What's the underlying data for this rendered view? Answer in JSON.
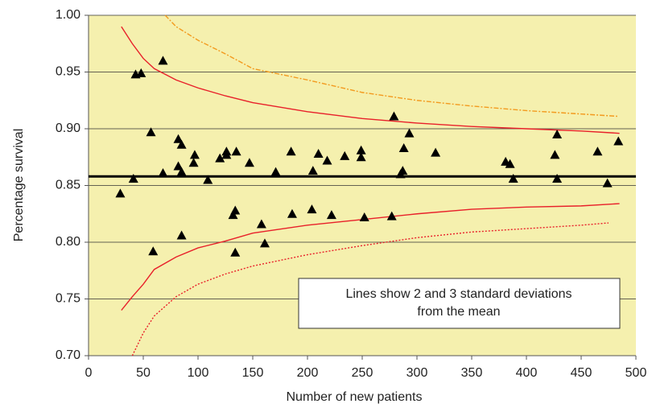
{
  "chart_data": {
    "type": "scatter",
    "xlabel": "Number of new patients",
    "ylabel": "Percentage survival",
    "xlim": [
      0,
      500
    ],
    "ylim": [
      0.7,
      1.0
    ],
    "xticks": [
      0,
      50,
      100,
      150,
      200,
      250,
      300,
      350,
      400,
      450,
      500
    ],
    "yticks": [
      {
        "value": 0.7,
        "label": "0.70"
      },
      {
        "value": 0.75,
        "label": "0.75"
      },
      {
        "value": 0.8,
        "label": "0.80"
      },
      {
        "value": 0.85,
        "label": "0.85"
      },
      {
        "value": 0.9,
        "label": "0.90"
      },
      {
        "value": 0.95,
        "label": "0.95"
      },
      {
        "value": 1.0,
        "label": "1.00"
      }
    ],
    "grid": true,
    "color": "#000000",
    "background": "#f5f0ae",
    "x": [
      29,
      41,
      43,
      48,
      57,
      59,
      68,
      68,
      82,
      82,
      85,
      85,
      85,
      96,
      97,
      109,
      120,
      126,
      126,
      135,
      132,
      134,
      134,
      147,
      158,
      161,
      171,
      185,
      186,
      204,
      205,
      210,
      218,
      222,
      234,
      249,
      249,
      252,
      277,
      279,
      285,
      287,
      288,
      293,
      317,
      381,
      385,
      388,
      426,
      428,
      428,
      465,
      474,
      484
    ],
    "values": [
      0.843,
      0.856,
      0.948,
      0.949,
      0.897,
      0.792,
      0.96,
      0.861,
      0.891,
      0.867,
      0.886,
      0.862,
      0.806,
      0.87,
      0.877,
      0.855,
      0.874,
      0.88,
      0.877,
      0.88,
      0.824,
      0.828,
      0.791,
      0.87,
      0.816,
      0.799,
      0.862,
      0.88,
      0.825,
      0.829,
      0.863,
      0.878,
      0.872,
      0.824,
      0.876,
      0.881,
      0.875,
      0.822,
      0.823,
      0.911,
      0.86,
      0.863,
      0.883,
      0.896,
      0.879,
      0.871,
      0.869,
      0.856,
      0.877,
      0.895,
      0.856,
      0.88,
      0.852,
      0.889
    ],
    "mean": 0.858,
    "mean_color": "#000000",
    "lines": [
      {
        "color": "#e8202a",
        "dash": "none",
        "x": [
          30,
          40,
          50,
          60,
          80,
          100,
          125,
          150,
          200,
          250,
          300,
          350,
          400,
          450,
          485
        ],
        "values": [
          0.99,
          0.975,
          0.962,
          0.953,
          0.943,
          0.936,
          0.929,
          0.923,
          0.915,
          0.909,
          0.905,
          0.902,
          0.9,
          0.898,
          0.896
        ]
      },
      {
        "color": "#e8202a",
        "dash": "none",
        "x": [
          30,
          40,
          50,
          60,
          80,
          100,
          125,
          150,
          200,
          250,
          300,
          350,
          400,
          450,
          485
        ],
        "values": [
          0.74,
          0.752,
          0.763,
          0.776,
          0.787,
          0.795,
          0.801,
          0.808,
          0.815,
          0.82,
          0.825,
          0.829,
          0.831,
          0.832,
          0.834
        ]
      },
      {
        "color": "#f39a1e",
        "dash": "6 2 2 2",
        "x": [
          70,
          80,
          100,
          125,
          150,
          200,
          250,
          300,
          350,
          400,
          450,
          483
        ],
        "values": [
          1.0,
          0.99,
          0.978,
          0.966,
          0.953,
          0.943,
          0.932,
          0.925,
          0.92,
          0.916,
          0.913,
          0.911
        ]
      },
      {
        "color": "#e8202a",
        "dash": "2 2",
        "x": [
          40,
          50,
          60,
          80,
          100,
          125,
          150,
          200,
          250,
          300,
          350,
          400,
          450,
          475
        ],
        "values": [
          0.7,
          0.72,
          0.735,
          0.752,
          0.763,
          0.772,
          0.779,
          0.789,
          0.797,
          0.804,
          0.809,
          0.812,
          0.815,
          0.817
        ]
      }
    ],
    "annotation": [
      "Lines show 2 and 3 standard deviations",
      "from the mean"
    ]
  }
}
